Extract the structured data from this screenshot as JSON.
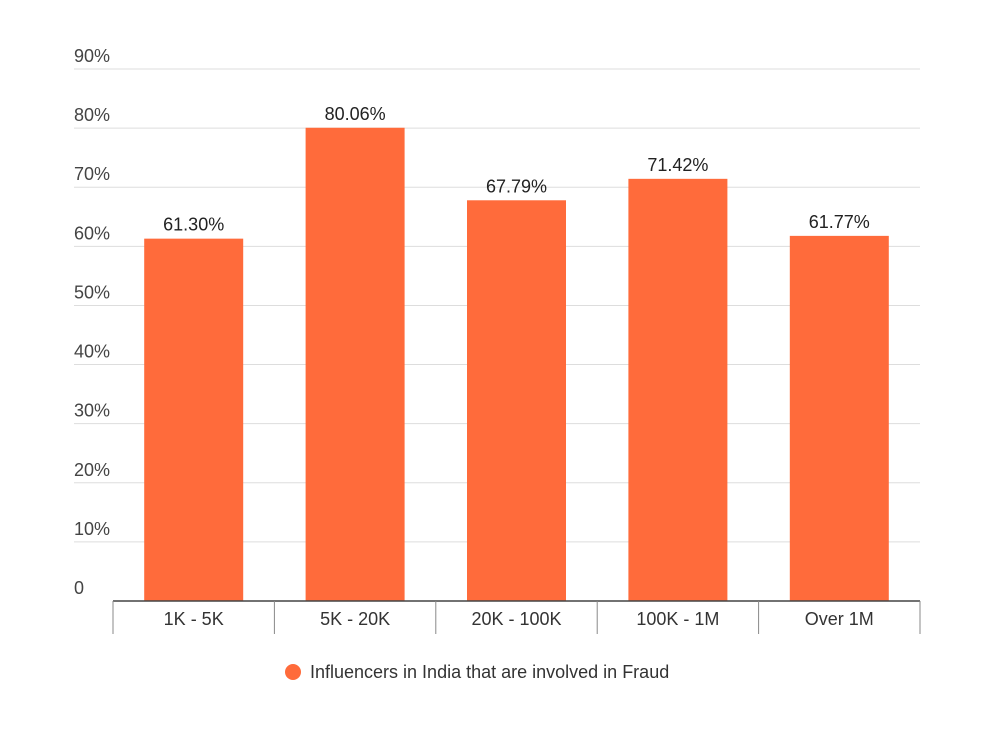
{
  "chart_data": {
    "type": "bar",
    "categories": [
      "1K - 5K",
      "5K - 20K",
      "20K - 100K",
      "100K - 1M",
      "Over 1M"
    ],
    "series": [
      {
        "name": "Influencers in India that are involved in Fraud",
        "values": [
          61.3,
          80.06,
          67.79,
          71.42,
          61.77
        ],
        "labels": [
          "61.30%",
          "80.06%",
          "67.79%",
          "71.42%",
          "61.77%"
        ],
        "color": "#ff6b3b"
      }
    ],
    "ylim": [
      0,
      90
    ],
    "yticks": [
      0,
      10,
      20,
      30,
      40,
      50,
      60,
      70,
      80,
      90
    ],
    "ytick_labels": [
      "0",
      "10%",
      "20%",
      "30%",
      "40%",
      "50%",
      "60%",
      "70%",
      "80%",
      "90%"
    ],
    "grid": true,
    "legend_position": "bottom-center",
    "gridline_color": "#dddddd",
    "axis_color": "#444444"
  }
}
